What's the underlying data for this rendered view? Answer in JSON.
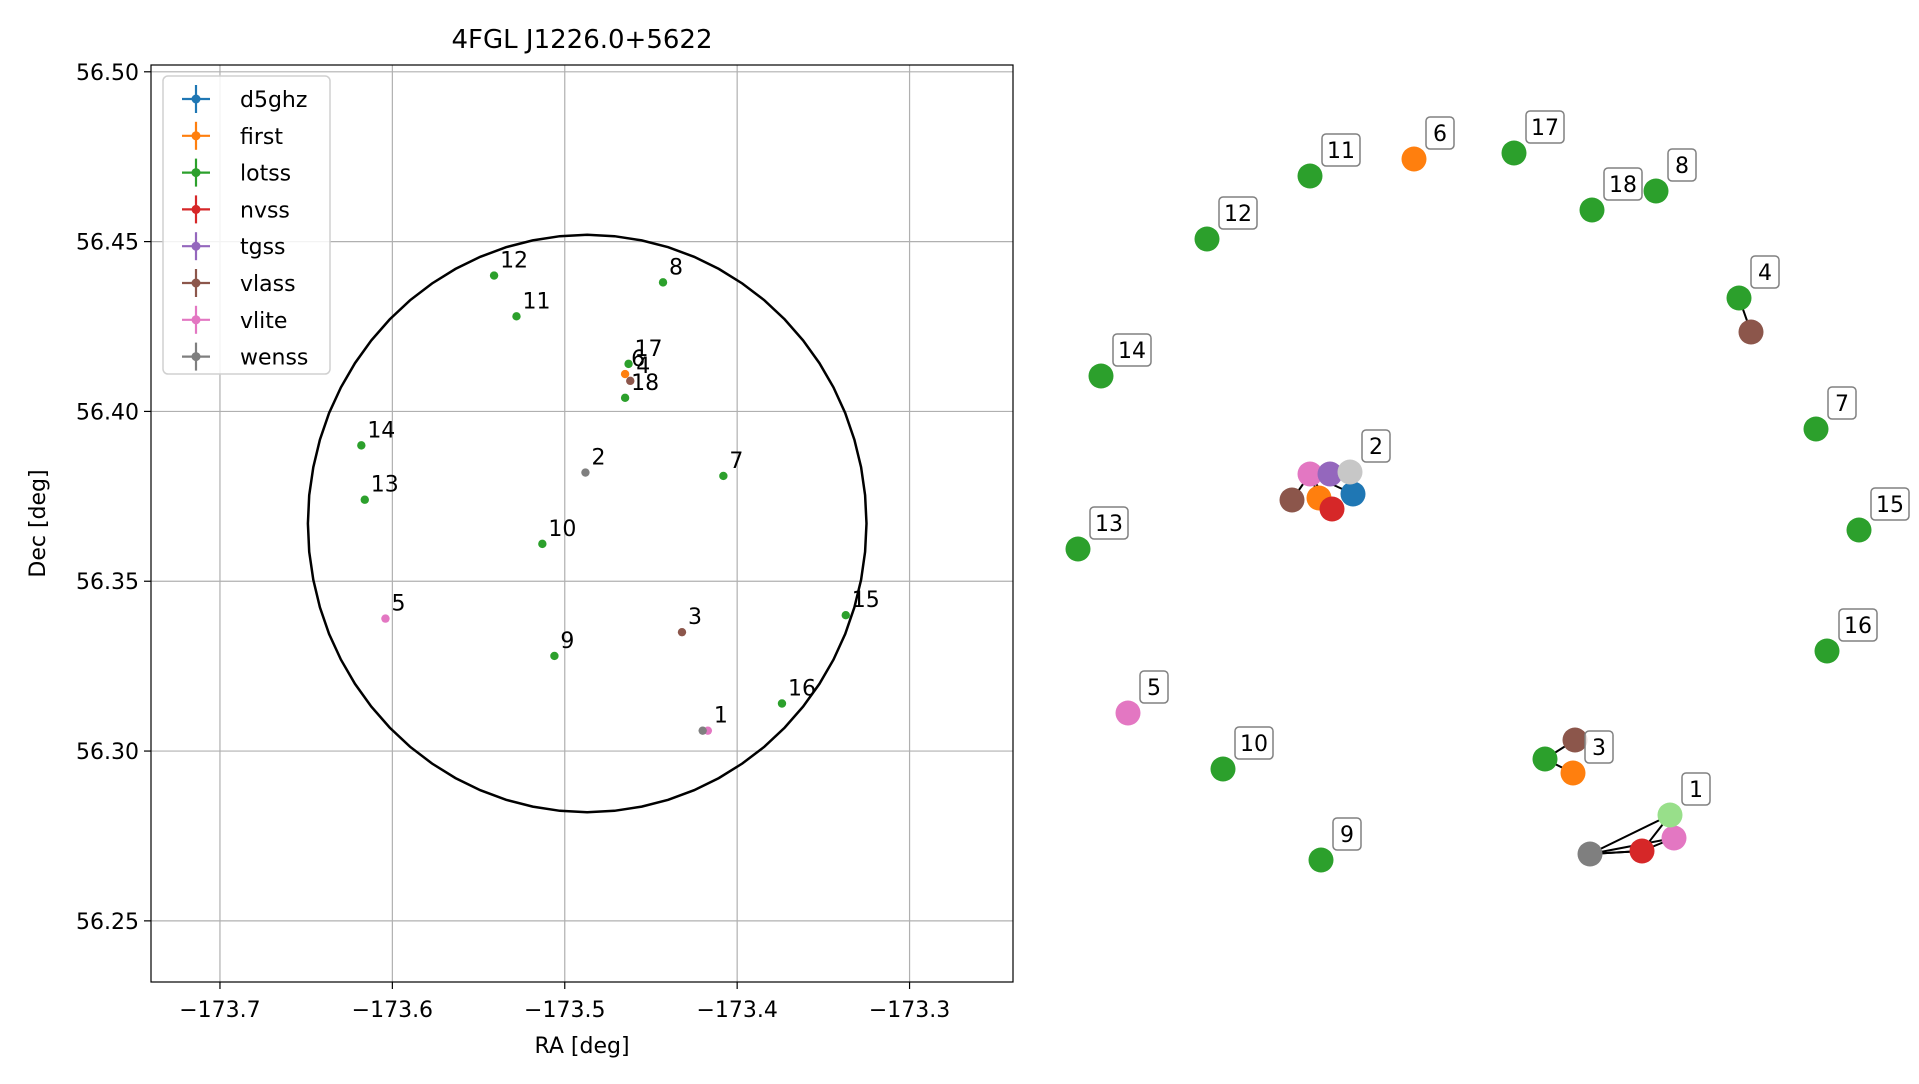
{
  "chart_data": [
    {
      "type": "scatter",
      "title": "4FGL J1226.0+5622",
      "xlabel": "RA [deg]",
      "ylabel": "Dec [deg]",
      "xlim": [
        -173.74,
        -173.24
      ],
      "ylim": [
        56.232,
        56.502
      ],
      "xticks": [
        -173.7,
        -173.6,
        -173.5,
        -173.4,
        -173.3
      ],
      "xtick_labels": [
        "−173.7",
        "−173.6",
        "−173.5",
        "−173.4",
        "−173.3"
      ],
      "yticks": [
        56.25,
        56.3,
        56.35,
        56.4,
        56.45,
        56.5
      ],
      "ytick_labels": [
        "56.25",
        "56.30",
        "56.35",
        "56.40",
        "56.45",
        "56.50"
      ],
      "grid": true,
      "legend_position": "upper-left",
      "circle": {
        "center": [
          -173.487,
          56.367
        ],
        "radius_ra": 0.162,
        "radius_dec": 0.085
      },
      "series": [
        {
          "name": "d5ghz",
          "color": "#1f77b4",
          "points": []
        },
        {
          "name": "first",
          "color": "#ff7f0e",
          "points": [
            {
              "id": "6",
              "ra": -173.465,
              "dec": 56.411
            }
          ]
        },
        {
          "name": "lotss",
          "color": "#2ca02c",
          "points": [
            {
              "id": "8",
              "ra": -173.443,
              "dec": 56.438
            },
            {
              "id": "11",
              "ra": -173.528,
              "dec": 56.428
            },
            {
              "id": "12",
              "ra": -173.541,
              "dec": 56.44
            },
            {
              "id": "14",
              "ra": -173.618,
              "dec": 56.39
            },
            {
              "id": "13",
              "ra": -173.616,
              "dec": 56.374
            },
            {
              "id": "10",
              "ra": -173.513,
              "dec": 56.361
            },
            {
              "id": "7",
              "ra": -173.408,
              "dec": 56.381
            },
            {
              "id": "15",
              "ra": -173.337,
              "dec": 56.34
            },
            {
              "id": "9",
              "ra": -173.506,
              "dec": 56.328
            },
            {
              "id": "16",
              "ra": -173.374,
              "dec": 56.314
            },
            {
              "id": "17",
              "ra": -173.463,
              "dec": 56.414
            },
            {
              "id": "18",
              "ra": -173.465,
              "dec": 56.404
            }
          ]
        },
        {
          "name": "nvss",
          "color": "#d62728",
          "points": []
        },
        {
          "name": "tgss",
          "color": "#9467bd",
          "points": []
        },
        {
          "name": "vlass",
          "color": "#8c564b",
          "points": [
            {
              "id": "4",
              "ra": -173.462,
              "dec": 56.409
            },
            {
              "id": "3",
              "ra": -173.432,
              "dec": 56.335
            }
          ]
        },
        {
          "name": "vlite",
          "color": "#e377c2",
          "points": [
            {
              "id": "5",
              "ra": -173.604,
              "dec": 56.339
            },
            {
              "id": "1",
              "ra": -173.417,
              "dec": 56.306
            }
          ]
        },
        {
          "name": "wenss",
          "color": "#7f7f7f",
          "points": [
            {
              "id": "2",
              "ra": -173.488,
              "dec": 56.382
            },
            {
              "id": "1b",
              "ra": -173.42,
              "dec": 56.306
            }
          ]
        }
      ],
      "point_labels": [
        {
          "text": "12",
          "ra": -173.541,
          "dec": 56.44
        },
        {
          "text": "8",
          "ra": -173.443,
          "dec": 56.438
        },
        {
          "text": "11",
          "ra": -173.528,
          "dec": 56.428
        },
        {
          "text": "17",
          "ra": -173.463,
          "dec": 56.414
        },
        {
          "text": "6",
          "ra": -173.465,
          "dec": 56.411
        },
        {
          "text": "4",
          "ra": -173.462,
          "dec": 56.409
        },
        {
          "text": "18",
          "ra": -173.465,
          "dec": 56.404
        },
        {
          "text": "14",
          "ra": -173.618,
          "dec": 56.39
        },
        {
          "text": "2",
          "ra": -173.488,
          "dec": 56.382
        },
        {
          "text": "7",
          "ra": -173.408,
          "dec": 56.381
        },
        {
          "text": "13",
          "ra": -173.616,
          "dec": 56.374
        },
        {
          "text": "10",
          "ra": -173.513,
          "dec": 56.361
        },
        {
          "text": "5",
          "ra": -173.604,
          "dec": 56.339
        },
        {
          "text": "15",
          "ra": -173.337,
          "dec": 56.34
        },
        {
          "text": "3",
          "ra": -173.432,
          "dec": 56.335
        },
        {
          "text": "9",
          "ra": -173.506,
          "dec": 56.328
        },
        {
          "text": "16",
          "ra": -173.374,
          "dec": 56.314
        },
        {
          "text": "1",
          "ra": -173.417,
          "dec": 56.306
        }
      ]
    },
    {
      "type": "diagram",
      "description": "Schematic of numbered sources with catalog-colored markers",
      "nodes": [
        {
          "label": "11",
          "color": "#2ca02c"
        },
        {
          "label": "6",
          "color": "#ff7f0e"
        },
        {
          "label": "17",
          "color": "#2ca02c"
        },
        {
          "label": "18",
          "color": "#2ca02c"
        },
        {
          "label": "8",
          "color": "#2ca02c"
        },
        {
          "label": "12",
          "color": "#2ca02c"
        },
        {
          "label": "4",
          "color": "#2ca02c",
          "extra_color": "#8c564b"
        },
        {
          "label": "14",
          "color": "#2ca02c"
        },
        {
          "label": "7",
          "color": "#2ca02c"
        },
        {
          "label": "2",
          "cluster": [
            "#e377c2",
            "#9467bd",
            "#8c564b",
            "#ff7f0e",
            "#d62728",
            "#1f77b4",
            "#c7c7c7"
          ]
        },
        {
          "label": "15",
          "color": "#2ca02c"
        },
        {
          "label": "13",
          "color": "#2ca02c"
        },
        {
          "label": "16",
          "color": "#2ca02c"
        },
        {
          "label": "5",
          "color": "#e377c2"
        },
        {
          "label": "10",
          "color": "#2ca02c"
        },
        {
          "label": "3",
          "cluster": [
            "#2ca02c",
            "#8c564b",
            "#ff7f0e"
          ]
        },
        {
          "label": "9",
          "color": "#2ca02c"
        },
        {
          "label": "1",
          "cluster": [
            "#7f7f7f",
            "#d62728",
            "#e377c2",
            "#98df8a"
          ]
        }
      ]
    }
  ]
}
